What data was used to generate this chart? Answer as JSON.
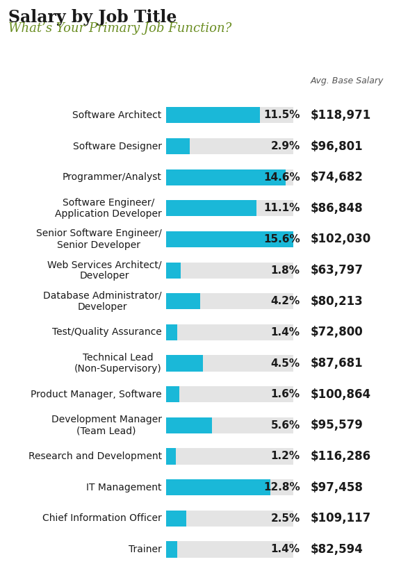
{
  "title": "Salary by Job Title",
  "subtitle": "What’s Your Primary Job Function?",
  "header_label": "Avg. Base Salary",
  "categories": [
    "Software Architect",
    "Software Designer",
    "Programmer/Analyst",
    "Software Engineer/\nApplication Developer",
    "Senior Software Engineer/\nSenior Developer",
    "Web Services Architect/\nDeveloper",
    "Database Administrator/\nDeveloper",
    "Test/Quality Assurance",
    "Technical Lead\n(Non-Supervisory)",
    "Product Manager, Software",
    "Development Manager\n(Team Lead)",
    "Research and Development",
    "IT Management",
    "Chief Information Officer",
    "Trainer"
  ],
  "percentages": [
    11.5,
    2.9,
    14.6,
    11.1,
    15.6,
    1.8,
    4.2,
    1.4,
    4.5,
    1.6,
    5.6,
    1.2,
    12.8,
    2.5,
    1.4
  ],
  "salaries": [
    "$118,971",
    "$96,801",
    "$74,682",
    "$86,848",
    "$102,030",
    "$63,797",
    "$80,213",
    "$72,800",
    "$87,681",
    "$100,864",
    "$95,579",
    "$116,286",
    "$97,458",
    "$109,117",
    "$82,594"
  ],
  "bar_color": "#1ab8d8",
  "bg_bar_color": "#e4e4e4",
  "max_pct": 15.6,
  "title_color": "#1a1a1a",
  "subtitle_color": "#6b8e23",
  "pct_fontsize": 11,
  "salary_fontsize": 12,
  "cat_fontsize": 10,
  "header_fontsize": 9,
  "background_color": "#ffffff"
}
